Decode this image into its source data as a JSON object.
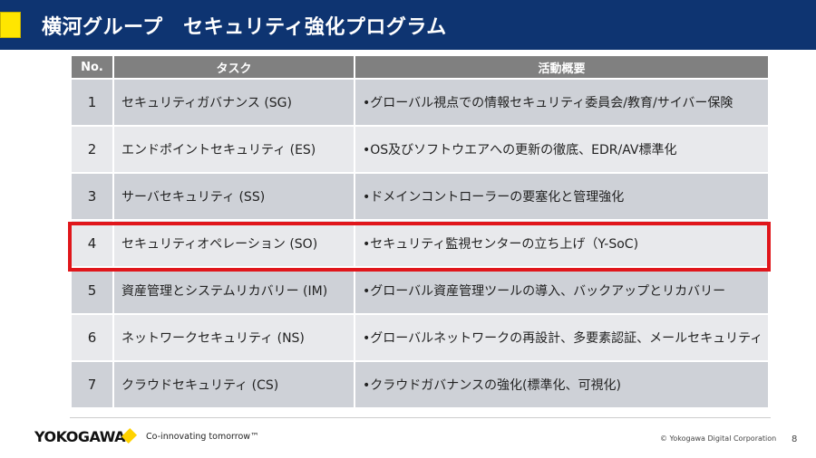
{
  "header": {
    "title": "横河グループ　セキュリティ強化プログラム"
  },
  "table": {
    "columns": [
      "No.",
      "タスク",
      "活動概要"
    ],
    "rows": [
      {
        "no": "1",
        "task": "セキュリティガバナンス (SG)",
        "summary": "•グローバル視点での情報セキュリティ委員会/教育/サイバー保険"
      },
      {
        "no": "2",
        "task": "エンドポイントセキュリティ (ES)",
        "summary": "•OS及びソフトウエアへの更新の徹底、EDR/AV標準化"
      },
      {
        "no": "3",
        "task": "サーバセキュリティ (SS)",
        "summary": "•ドメインコントローラーの要塞化と管理強化"
      },
      {
        "no": "4",
        "task": "セキュリティオペレーション (SO)",
        "summary": "•セキュリティ監視センターの立ち上げ（Y-SoC)"
      },
      {
        "no": "5",
        "task": "資産管理とシステムリカバリー (IM)",
        "summary": "•グローバル資産管理ツールの導入、バックアップとリカバリー"
      },
      {
        "no": "6",
        "task": "ネットワークセキュリティ (NS)",
        "summary": "•グローバルネットワークの再設計、多要素認証、メールセキュリティ"
      },
      {
        "no": "7",
        "task": "クラウドセキュリティ (CS)",
        "summary": "•クラウドガバナンスの強化(標準化、可視化)"
      }
    ],
    "highlighted_row": "4"
  },
  "footer": {
    "logo": "YOKOGAWA",
    "tagline": "Co-innovating tomorrow™",
    "copyright": "© Yokogawa Digital Corporation",
    "page": "8"
  },
  "colors": {
    "header": "#0e3471",
    "accent": "#ffe600",
    "highlight": "#e0161b"
  }
}
